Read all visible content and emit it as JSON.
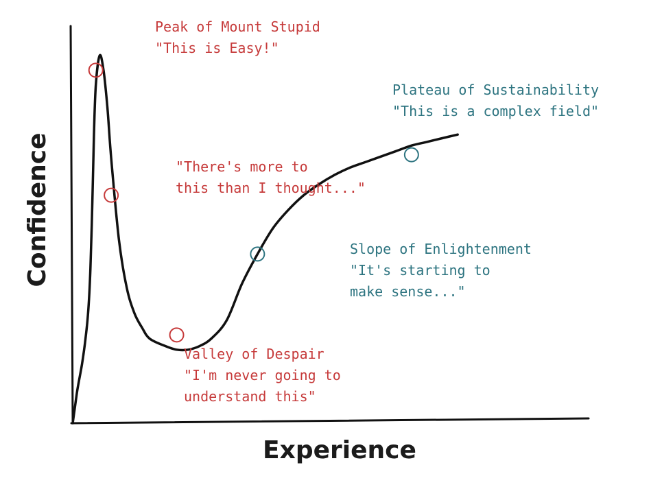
{
  "chart_data": {
    "type": "line",
    "title": "",
    "xlabel": "Experience",
    "ylabel": "Confidence",
    "grid": false,
    "legend": "none",
    "series": [
      {
        "x": [
          0,
          0.02,
          0.06,
          0.12,
          0.16,
          0.2,
          0.23,
          0.255,
          0.275,
          0.3,
          0.35,
          0.4,
          0.45,
          0.5,
          0.6,
          0.7,
          0.8,
          0.9,
          1.0,
          1.2,
          1.35,
          1.5,
          1.65,
          1.8,
          2.0,
          2.2,
          2.4,
          2.6,
          2.8,
          3.0,
          3.2,
          3.4,
          3.6,
          3.8,
          4.0,
          4.2,
          4.4,
          4.6,
          4.8,
          5.0
        ],
        "values": [
          0,
          0.03,
          0.09,
          0.16,
          0.22,
          0.3,
          0.42,
          0.6,
          0.78,
          0.92,
          1.0,
          0.96,
          0.86,
          0.72,
          0.5,
          0.37,
          0.3,
          0.26,
          0.23,
          0.21,
          0.2,
          0.2,
          0.21,
          0.23,
          0.28,
          0.38,
          0.46,
          0.53,
          0.58,
          0.62,
          0.65,
          0.675,
          0.695,
          0.71,
          0.725,
          0.74,
          0.755,
          0.765,
          0.775,
          0.785
        ]
      }
    ],
    "xlim": [
      0,
      6.7
    ],
    "ylim": [
      0,
      1.08
    ],
    "colors": {
      "curve": "#111111",
      "red": "#c63a3a",
      "teal": "#2d7480"
    },
    "annotations": [
      {
        "point": [
          0.3,
          0.96
        ],
        "color": "red",
        "lines": [
          "Peak of Mount Stupid",
          "\"This is Easy!\""
        ]
      },
      {
        "point": [
          0.5,
          0.62
        ],
        "color": "red",
        "lines": [
          "\"There's more to",
          "this than I thought...\""
        ]
      },
      {
        "point": [
          1.35,
          0.24
        ],
        "color": "red",
        "lines": [
          "Valley of Despair",
          "\"I'm never going to",
          "understand this\""
        ]
      },
      {
        "point": [
          2.4,
          0.46
        ],
        "color": "teal",
        "lines": [
          "Slope of Enlightenment",
          "\"It's starting to",
          "make sense...\""
        ]
      },
      {
        "point": [
          4.4,
          0.73
        ],
        "color": "teal",
        "lines": [
          "Plateau of Sustainability",
          "\"This is a complex field\""
        ]
      }
    ]
  }
}
